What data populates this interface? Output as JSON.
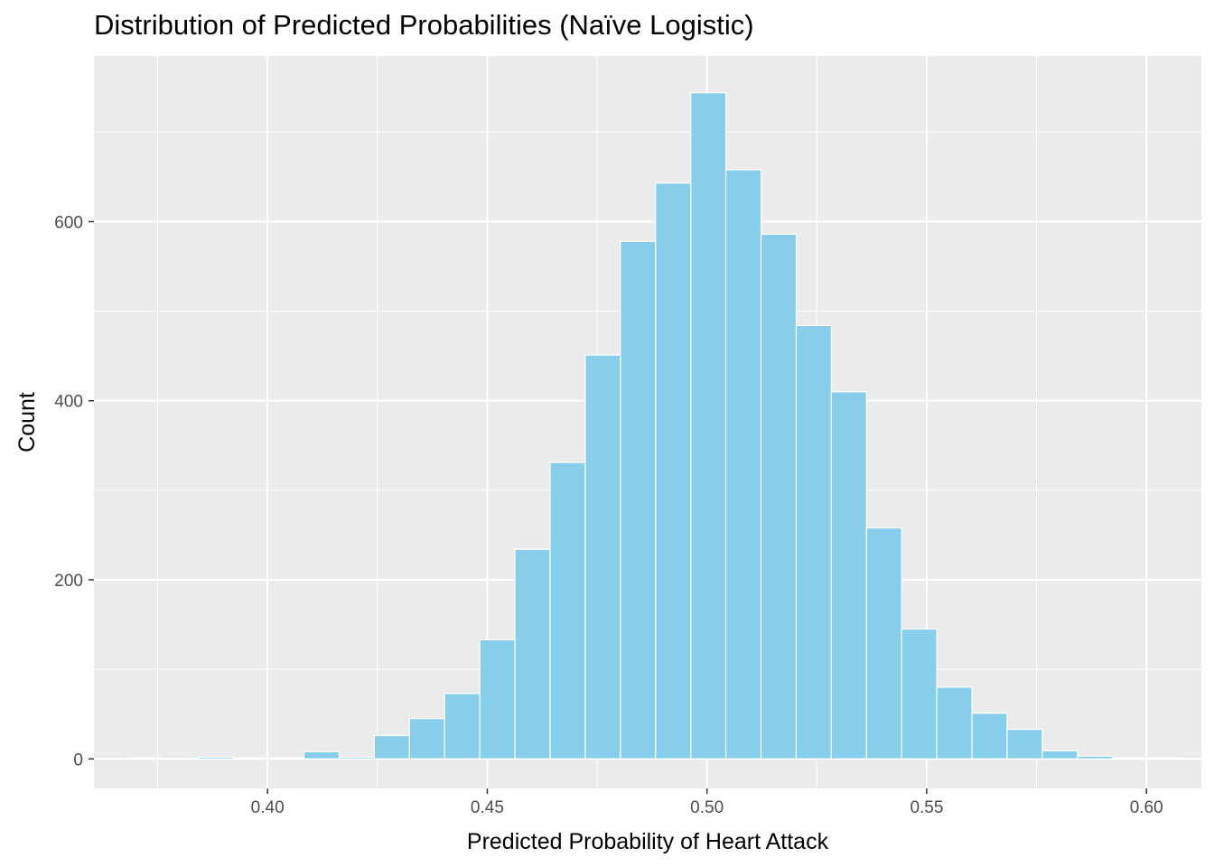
{
  "chart_data": {
    "type": "bar",
    "title": "Distribution of Predicted Probabilities (Naïve Logistic)",
    "xlabel": "Predicted Probability of Heart Attack",
    "ylabel": "Count",
    "xlim": [
      0.3605,
      0.6125
    ],
    "ylim": [
      -33,
      785
    ],
    "x_ticks": [
      {
        "value": 0.4,
        "label": "0.40"
      },
      {
        "value": 0.45,
        "label": "0.45"
      },
      {
        "value": 0.5,
        "label": "0.50"
      },
      {
        "value": 0.55,
        "label": "0.55"
      },
      {
        "value": 0.6,
        "label": "0.60"
      }
    ],
    "y_ticks": [
      {
        "value": 0,
        "label": "0"
      },
      {
        "value": 200,
        "label": "200"
      },
      {
        "value": 400,
        "label": "400"
      },
      {
        "value": 600,
        "label": "600"
      }
    ],
    "bin_width": 0.008,
    "bin_centers": [
      0.3723,
      0.3803,
      0.3883,
      0.3963,
      0.4043,
      0.4123,
      0.4203,
      0.4283,
      0.4363,
      0.4443,
      0.4523,
      0.4603,
      0.4683,
      0.4763,
      0.4843,
      0.4923,
      0.5003,
      0.5083,
      0.5163,
      0.5243,
      0.5323,
      0.5403,
      0.5483,
      0.5563,
      0.5643,
      0.5723,
      0.5803,
      0.5883,
      0.5963,
      0.6043
    ],
    "values": [
      1,
      0,
      2,
      1,
      1,
      8,
      2,
      26,
      45,
      73,
      133,
      234,
      331,
      451,
      578,
      643,
      744,
      658,
      586,
      484,
      410,
      258,
      145,
      80,
      51,
      33,
      9,
      3,
      1,
      1
    ],
    "bar_fill": "#87ceeb",
    "bar_outline": "#ffffff",
    "panel_background": "#ebebeb",
    "grid": true,
    "legend": "none"
  }
}
